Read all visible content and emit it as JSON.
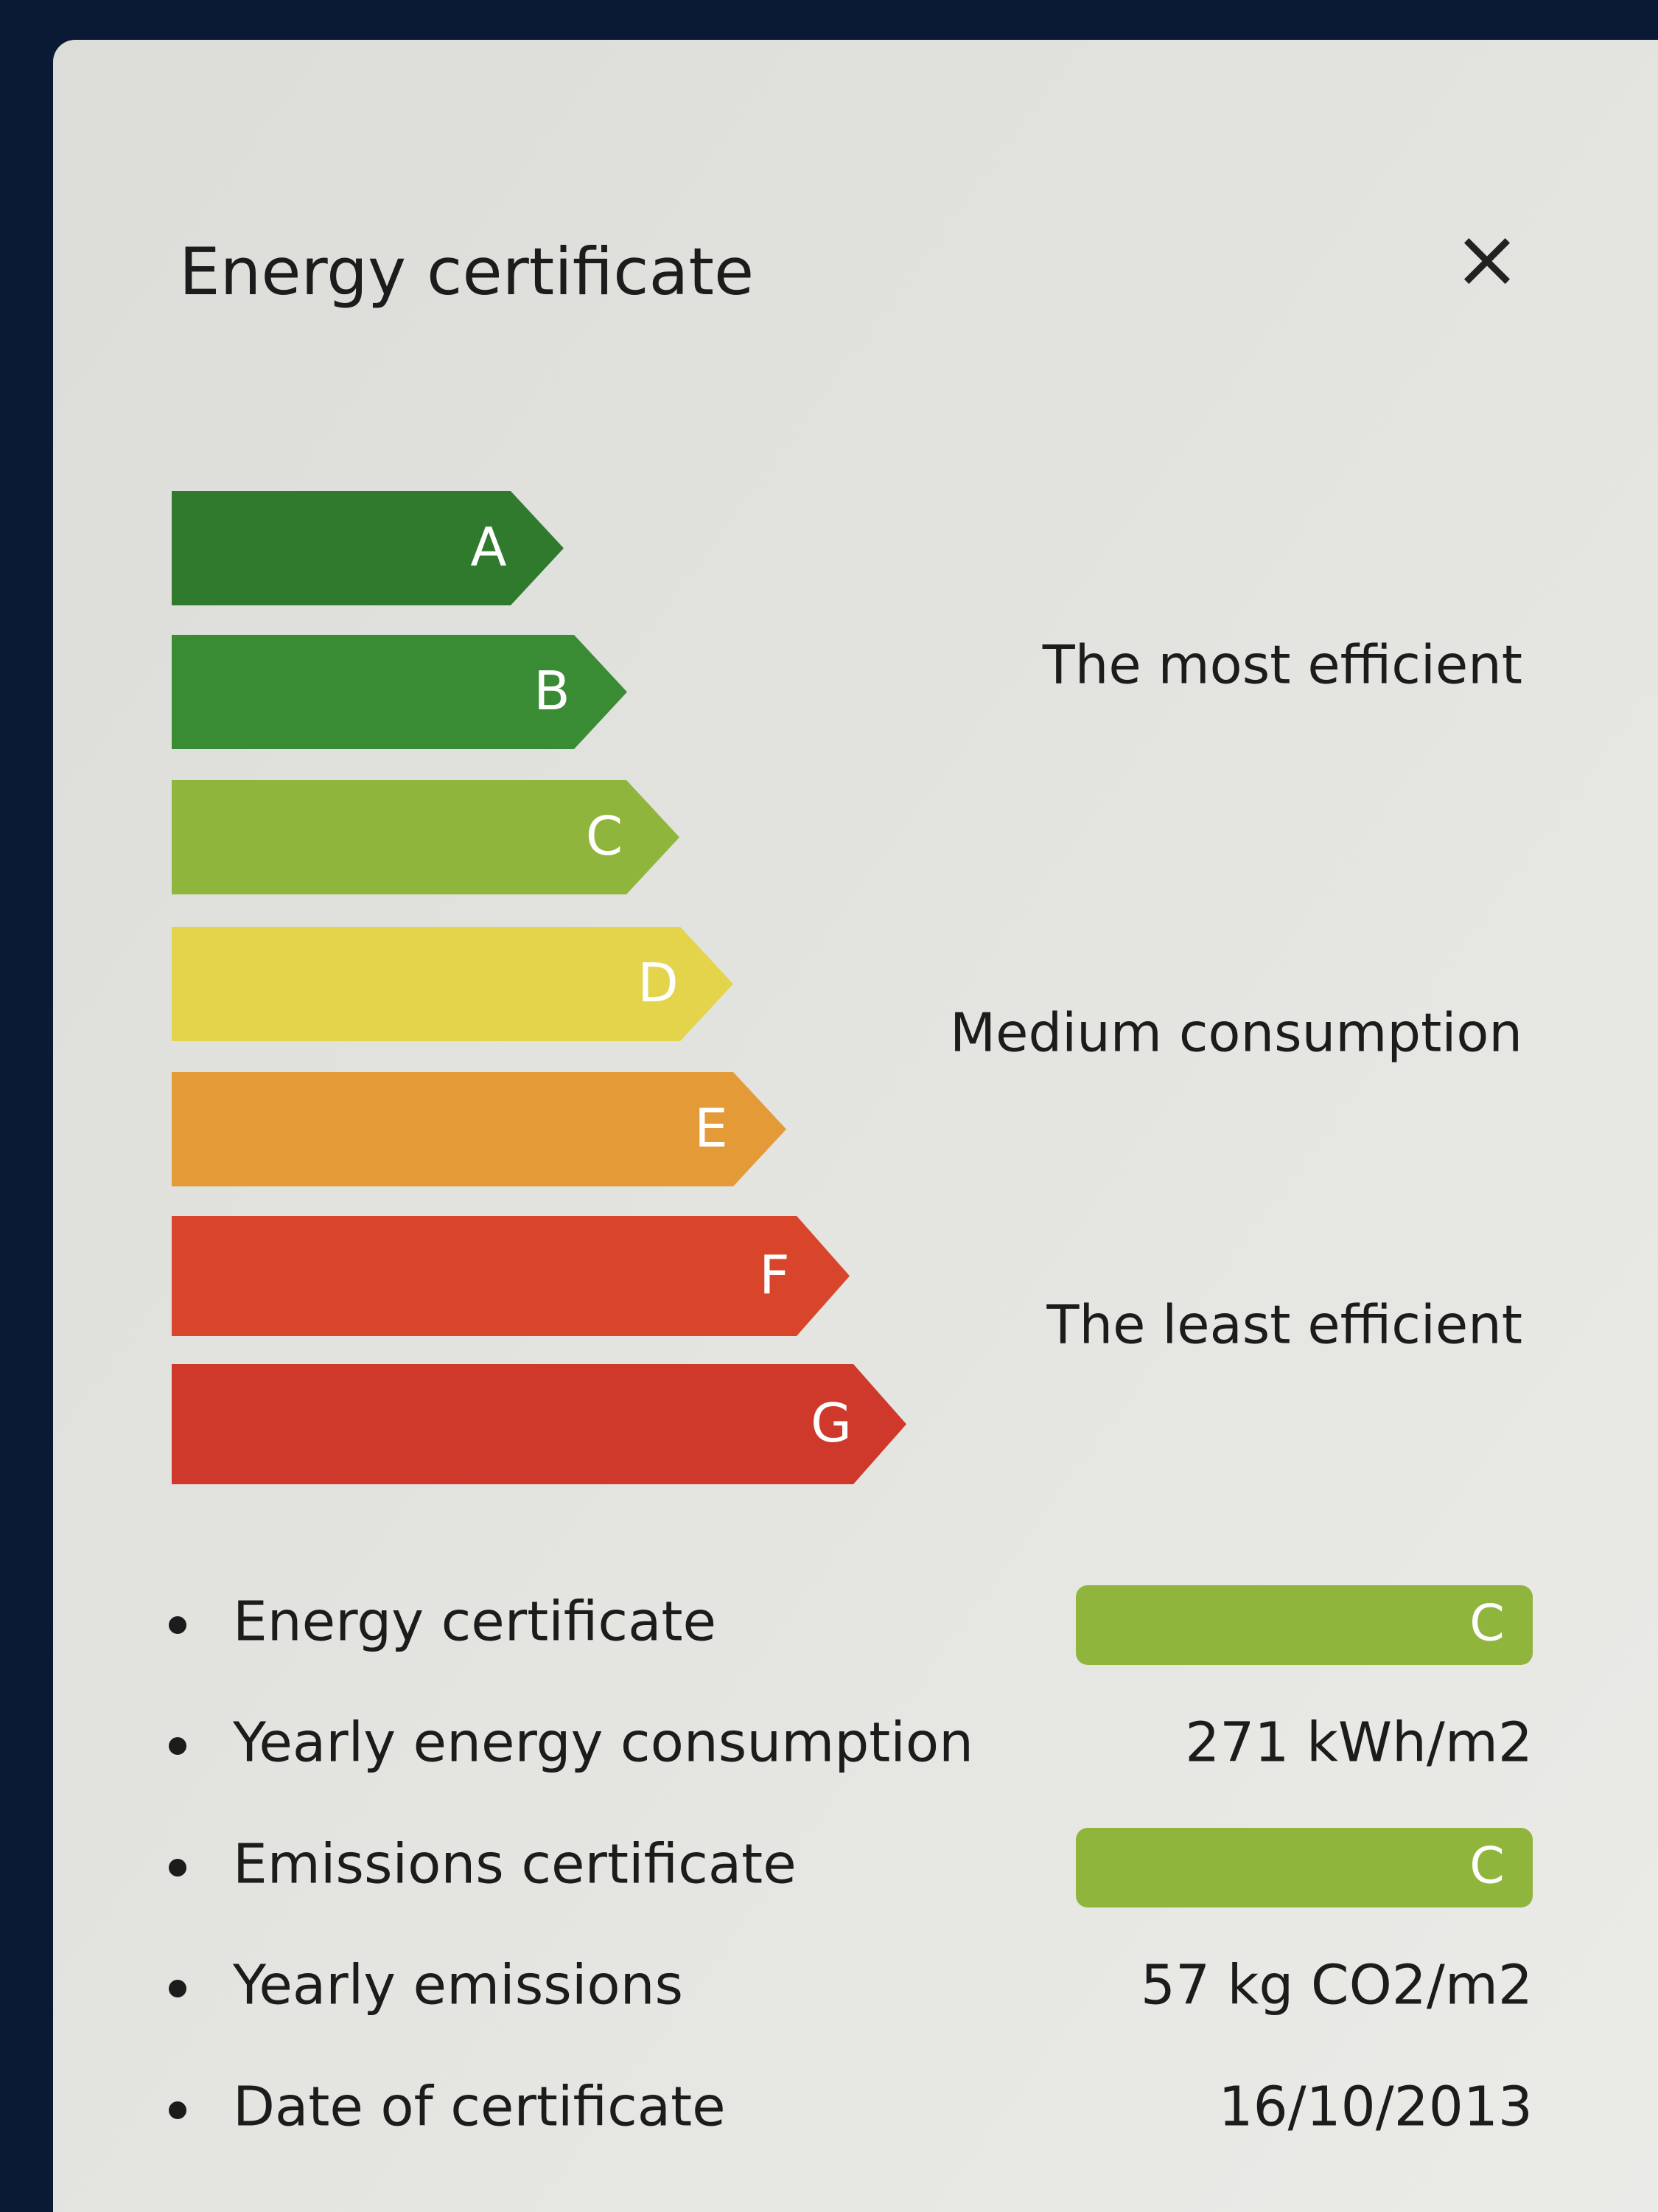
{
  "header": {
    "title": "Energy certificate",
    "close": "×"
  },
  "scale": {
    "bands": [
      {
        "label": "A",
        "color": "#2f7a2c"
      },
      {
        "label": "B",
        "color": "#3a8c34"
      },
      {
        "label": "C",
        "color": "#8fb53c"
      },
      {
        "label": "D",
        "color": "#e3d44c"
      },
      {
        "label": "E",
        "color": "#e49a36"
      },
      {
        "label": "F",
        "color": "#d8452b"
      },
      {
        "label": "G",
        "color": "#cf392b"
      }
    ],
    "descriptions": [
      "The most efficient",
      "Medium consumption",
      "The least efficient"
    ]
  },
  "details": {
    "badge_color": "#8fb53c",
    "rows": [
      {
        "label": "Energy certificate",
        "value": "C",
        "badge": true
      },
      {
        "label": "Yearly energy consumption",
        "value": "271 kWh/m2",
        "badge": false
      },
      {
        "label": "Emissions certificate",
        "value": "C",
        "badge": true
      },
      {
        "label": "Yearly emissions",
        "value": "57 kg CO2/m2",
        "badge": false
      },
      {
        "label": "Date of certificate",
        "value": "16/10/2013",
        "badge": false
      }
    ]
  }
}
